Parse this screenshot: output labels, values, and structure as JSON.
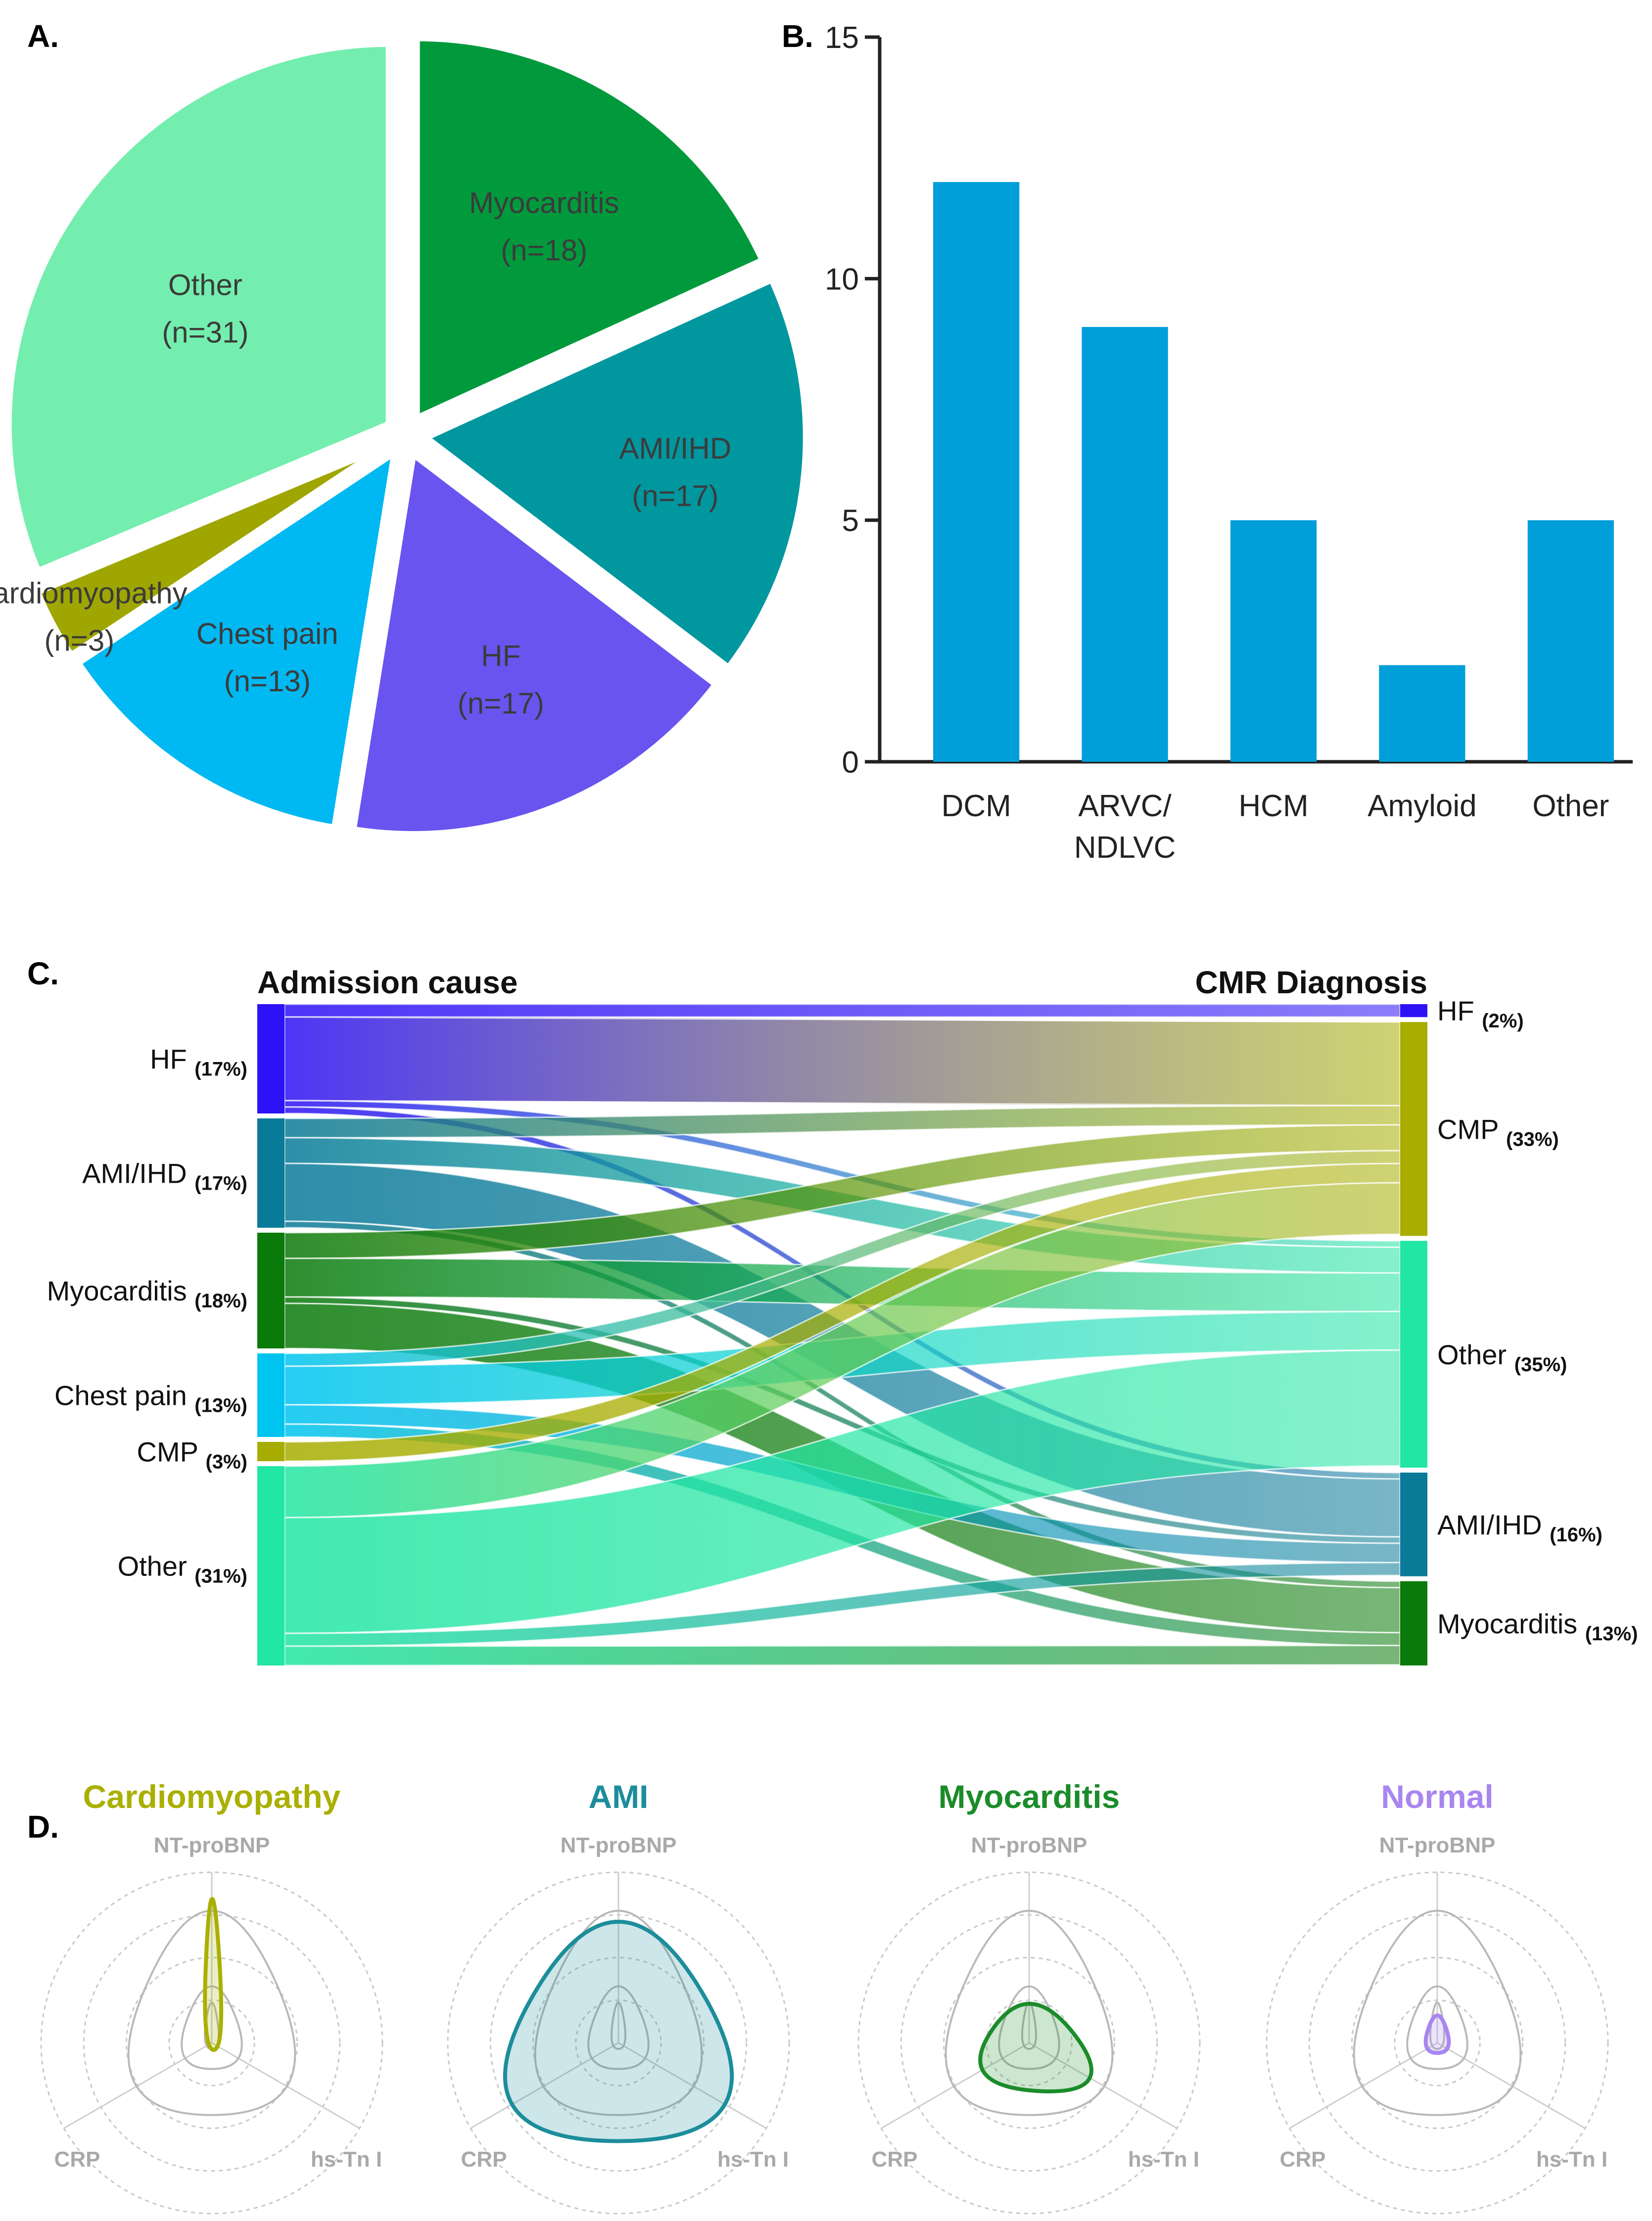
{
  "panel_labels": {
    "a": "A.",
    "b": "B.",
    "c": "C.",
    "d": "D."
  },
  "colors": {
    "myocarditis": "#009a3c",
    "ami": "#00979f",
    "hf": "#6a54ef",
    "chest_pain": "#00b8f2",
    "cardiomyopathy": "#9fa600",
    "other": "#73eeae",
    "bar": "#009fd9",
    "radar_cmp": "#aab000",
    "radar_ami": "#1c8d9b",
    "radar_myo": "#1b8c2a",
    "radar_normal": "#a886f0"
  },
  "chart_data": [
    {
      "type": "pie",
      "title": "",
      "slices": [
        {
          "label": "Myocarditis",
          "count_label": "(n=18)",
          "value": 18,
          "color": "#009a3c"
        },
        {
          "label": "AMI/IHD",
          "count_label": "(n=17)",
          "value": 17,
          "color": "#00979f"
        },
        {
          "label": "HF",
          "count_label": "(n=17)",
          "value": 17,
          "color": "#6a54ef"
        },
        {
          "label": "Chest pain",
          "count_label": "(n=13)",
          "value": 13,
          "color": "#00b8f2"
        },
        {
          "label": "Cardiomyopathy",
          "count_label": "(n=3)",
          "value": 3,
          "color": "#9fa600"
        },
        {
          "label": "Other",
          "count_label": "(n=31)",
          "value": 31,
          "color": "#73eeae"
        }
      ]
    },
    {
      "type": "bar",
      "categories": [
        "DCM",
        "ARVC/\nNDLVC",
        "HCM",
        "Amyloid",
        "Other"
      ],
      "values": [
        12,
        9,
        5,
        2,
        5
      ],
      "ylim": [
        0,
        15
      ],
      "yticks": [
        "0",
        "5",
        "10",
        "15"
      ],
      "ytick_values": [
        0,
        5,
        10,
        15
      ],
      "xlabel": "",
      "ylabel": ""
    },
    {
      "type": "sankey",
      "left_title": "Admission cause",
      "right_title": "CMR Diagnosis",
      "left_nodes": [
        {
          "id": "HF",
          "label": "HF",
          "pct": "(17%)",
          "value": 17,
          "color": "#2d12f5"
        },
        {
          "id": "AMI",
          "label": "AMI/IHD",
          "pct": "(17%)",
          "value": 17,
          "color": "#0a7a99"
        },
        {
          "id": "MYO",
          "label": "Myocarditis",
          "pct": "(18%)",
          "value": 18,
          "color": "#0a7a0a"
        },
        {
          "id": "CP",
          "label": "Chest pain",
          "pct": "(13%)",
          "value": 13,
          "color": "#00c4f0"
        },
        {
          "id": "CMP",
          "label": "CMP",
          "pct": "(3%)",
          "value": 3,
          "color": "#a6ad00"
        },
        {
          "id": "OTH",
          "label": "Other",
          "pct": "(31%)",
          "value": 31,
          "color": "#22e6a3"
        }
      ],
      "right_nodes": [
        {
          "id": "HF",
          "label": "HF",
          "pct": "(2%)",
          "value": 2,
          "color": "#2d12f5"
        },
        {
          "id": "CMP",
          "label": "CMP",
          "pct": "(33%)",
          "value": 33,
          "color": "#a8ad00"
        },
        {
          "id": "OTH",
          "label": "Other",
          "pct": "(35%)",
          "value": 35,
          "color": "#22e6a3"
        },
        {
          "id": "AMI",
          "label": "AMI/IHD",
          "pct": "(16%)",
          "value": 16,
          "color": "#0a7a99"
        },
        {
          "id": "MYO",
          "label": "Myocarditis",
          "pct": "(13%)",
          "value": 13,
          "color": "#0a7a0a"
        }
      ],
      "links": [
        {
          "source": "HF",
          "target": "HF",
          "value": 2
        },
        {
          "source": "HF",
          "target": "CMP",
          "value": 13
        },
        {
          "source": "HF",
          "target": "OTH",
          "value": 1
        },
        {
          "source": "HF",
          "target": "AMI",
          "value": 1
        },
        {
          "source": "AMI",
          "target": "CMP",
          "value": 3
        },
        {
          "source": "AMI",
          "target": "OTH",
          "value": 4
        },
        {
          "source": "AMI",
          "target": "AMI",
          "value": 9
        },
        {
          "source": "AMI",
          "target": "MYO",
          "value": 1
        },
        {
          "source": "MYO",
          "target": "CMP",
          "value": 4
        },
        {
          "source": "MYO",
          "target": "OTH",
          "value": 6
        },
        {
          "source": "MYO",
          "target": "AMI",
          "value": 1
        },
        {
          "source": "MYO",
          "target": "MYO",
          "value": 7
        },
        {
          "source": "CP",
          "target": "CMP",
          "value": 2
        },
        {
          "source": "CP",
          "target": "OTH",
          "value": 6
        },
        {
          "source": "CP",
          "target": "AMI",
          "value": 3
        },
        {
          "source": "CP",
          "target": "MYO",
          "value": 2
        },
        {
          "source": "CMP",
          "target": "CMP",
          "value": 3
        },
        {
          "source": "OTH",
          "target": "CMP",
          "value": 8
        },
        {
          "source": "OTH",
          "target": "OTH",
          "value": 18
        },
        {
          "source": "OTH",
          "target": "AMI",
          "value": 2
        },
        {
          "source": "OTH",
          "target": "MYO",
          "value": 3
        }
      ]
    },
    {
      "type": "radar",
      "axes": [
        "NT-proBNP",
        "hs-Tn I",
        "CRP"
      ],
      "reference_levels": [
        [
          0.28,
          0.06,
          0.06
        ],
        [
          0.42,
          0.26,
          0.26
        ],
        [
          1.0,
          0.72,
          0.72
        ]
      ],
      "charts": [
        {
          "title": "Cardiomyopathy",
          "color": "#aab000",
          "values": [
            0.97,
            0.08,
            0.06
          ]
        },
        {
          "title": "AMI",
          "color": "#1c8d9b",
          "values": [
            0.97,
            0.98,
            0.98
          ]
        },
        {
          "title": "Myocarditis",
          "color": "#1b8c2a",
          "values": [
            0.34,
            0.53,
            0.43
          ]
        },
        {
          "title": "Normal",
          "color": "#a886f0",
          "values": [
            0.2,
            0.1,
            0.1
          ]
        }
      ]
    }
  ]
}
